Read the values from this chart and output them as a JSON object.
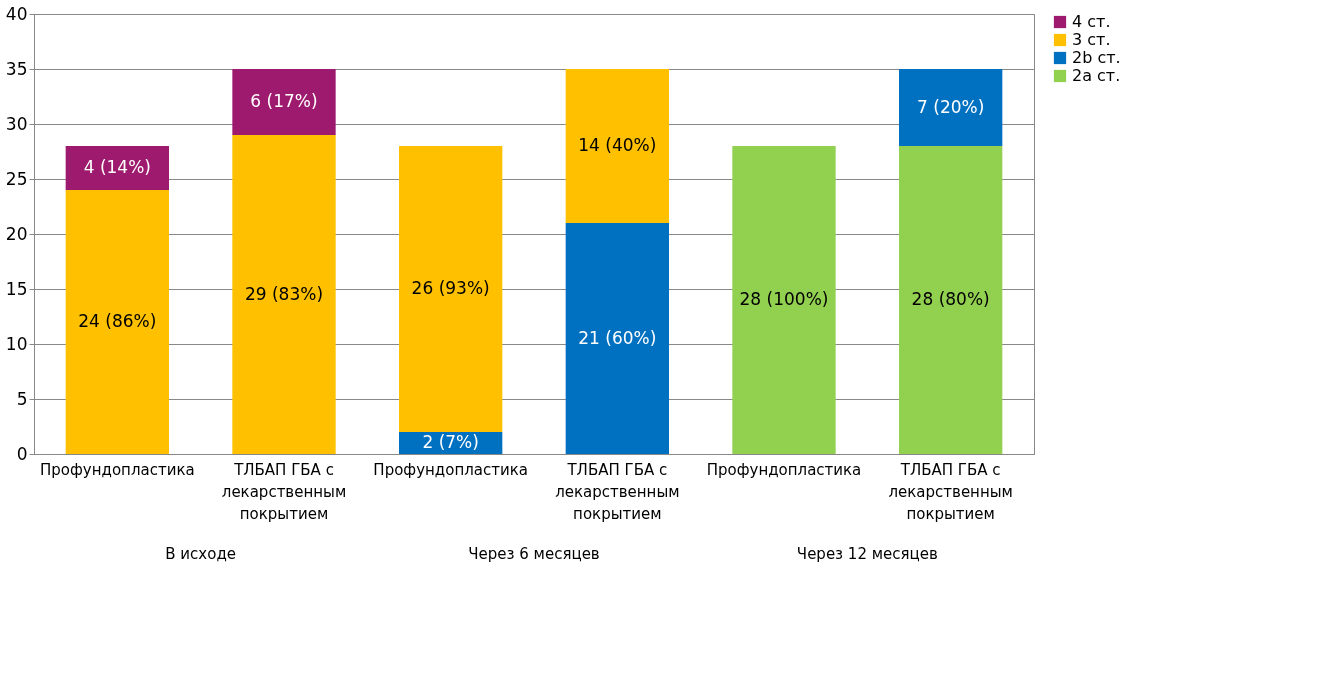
{
  "chart_data": {
    "type": "bar",
    "stacked": true,
    "categories": [
      "Профундопластика",
      "ТЛБАП ГБА с лекарственным покрытием",
      "Профундопластика",
      "ТЛБАП ГБА с лекарственным покрытием",
      "Профундопластика",
      "ТЛБАП ГБА с лекарственным покрытием"
    ],
    "series": [
      {
        "name": "2а ст.",
        "color": "#92d050",
        "values": [
          null,
          null,
          null,
          null,
          28,
          28
        ],
        "value_labels": [
          null,
          null,
          null,
          null,
          "28 (100%)",
          "28 (80%)"
        ]
      },
      {
        "name": "2b ст.",
        "color": "#0070c0",
        "values": [
          null,
          null,
          2,
          21,
          null,
          7
        ],
        "value_labels": [
          null,
          null,
          "2 (7%)",
          "21 (60%)",
          null,
          "7 (20%)"
        ]
      },
      {
        "name": "3 ст.",
        "color": "#ffc000",
        "values": [
          24,
          29,
          26,
          14,
          null,
          null
        ],
        "value_labels": [
          "24 (86%)",
          "29 (83%)",
          "26 (93%)",
          "14 (40%)",
          null,
          null
        ]
      },
      {
        "name": "4 ст.",
        "color": "#9e1a6e",
        "values": [
          4,
          6,
          null,
          null,
          null,
          null
        ],
        "value_labels": [
          "4 (14%)",
          "6 (17%)",
          null,
          null,
          null,
          null
        ]
      }
    ],
    "annotations": [
      "В исходе",
      "Через 6 месяцев",
      "Через 12 месяцев"
    ],
    "ylim": [
      0,
      40
    ],
    "yticks": [
      0,
      5,
      10,
      15,
      20,
      25,
      30,
      35,
      40
    ],
    "grid": "y",
    "legend": "right"
  }
}
